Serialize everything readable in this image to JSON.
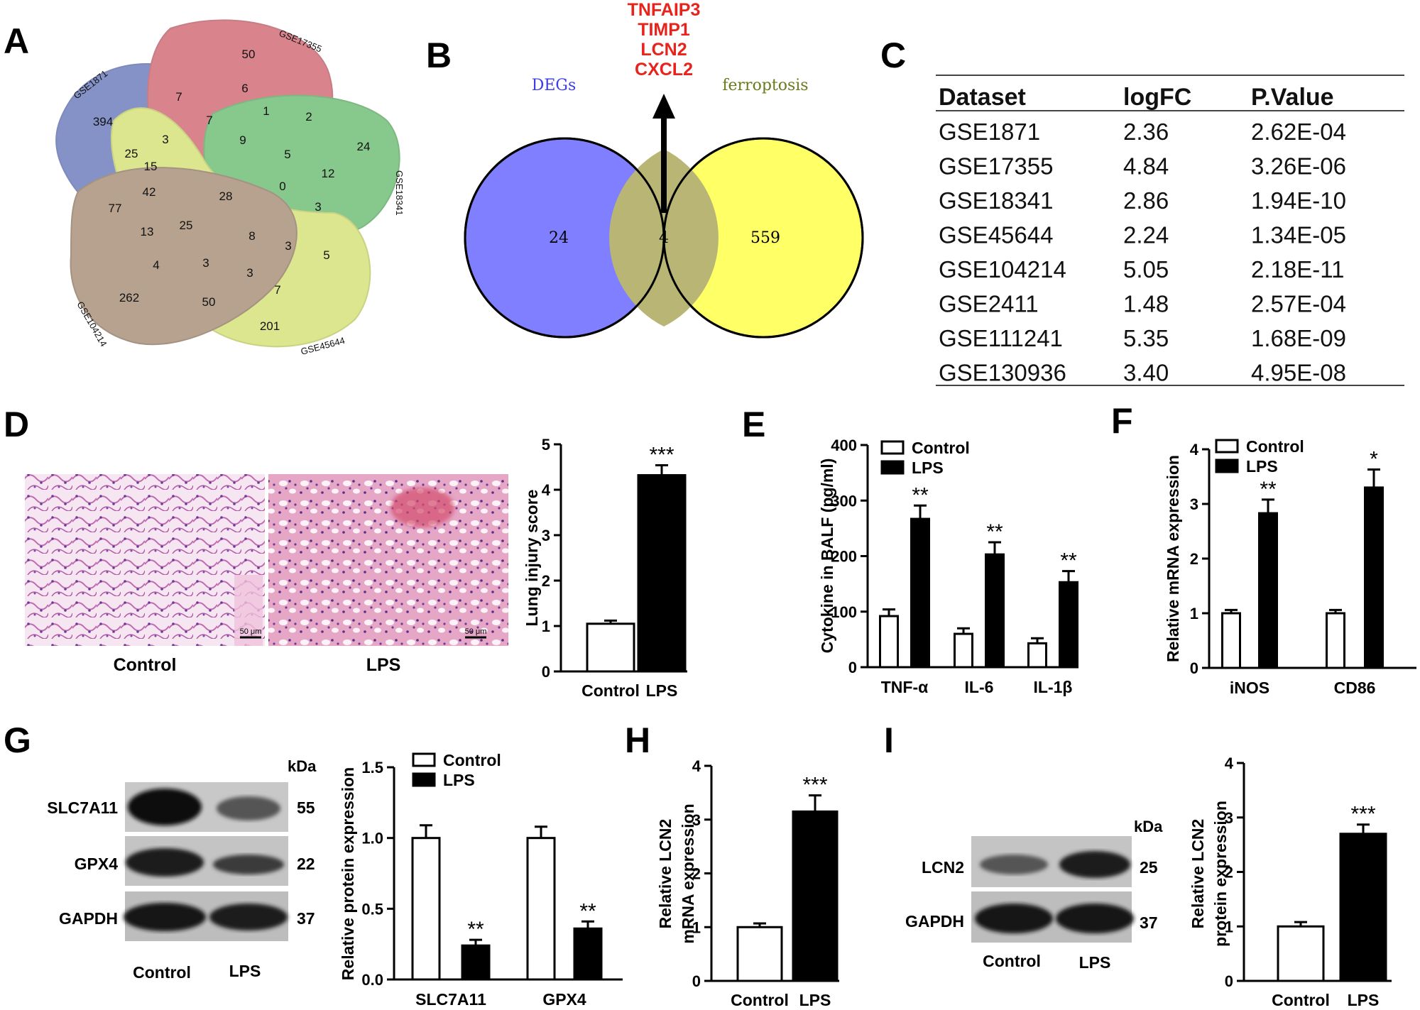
{
  "panels": {
    "A": "A",
    "B": "B",
    "C": "C",
    "D": "D",
    "E": "E",
    "F": "F",
    "G": "G",
    "H": "H",
    "I": "I"
  },
  "colors": {
    "venn_blue": "#7f7fff",
    "venn_yellow": "#ffff66",
    "venn_overlap": "#b9b675",
    "red_text": "#e8231c"
  },
  "venn5": {
    "sets": [
      "GSE1871",
      "GSE17355",
      "GSE18341",
      "GSE45644",
      "GSE104214"
    ],
    "regions": [
      "394",
      "50",
      "24",
      "201",
      "262",
      "7",
      "6",
      "1",
      "2",
      "7",
      "9",
      "5",
      "12",
      "24",
      "3",
      "25",
      "15",
      "28",
      "0",
      "3",
      "42",
      "77",
      "25",
      "8",
      "3",
      "5",
      "13",
      "4",
      "3",
      "3",
      "7",
      "50"
    ]
  },
  "venn2": {
    "left_label": "DEGs",
    "right_label": "ferroptosis",
    "left_only": "24",
    "both": "4",
    "right_only": "559",
    "genes": [
      "TNFAIP3",
      "TIMP1",
      "LCN2",
      "CXCL2"
    ]
  },
  "table": {
    "headers": [
      "Dataset",
      "logFC",
      "P.Value"
    ],
    "rows": [
      [
        "GSE1871",
        "2.36",
        "2.62E-04"
      ],
      [
        "GSE17355",
        "4.84",
        "3.26E-06"
      ],
      [
        "GSE18341",
        "2.86",
        "1.94E-10"
      ],
      [
        "GSE45644",
        "2.24",
        "1.34E-05"
      ],
      [
        "GSE104214",
        "5.05",
        "2.18E-11"
      ],
      [
        "GSE2411",
        "1.48",
        "2.57E-04"
      ],
      [
        "GSE111241",
        "5.35",
        "1.68E-09"
      ],
      [
        "GSE130936",
        "3.40",
        "4.95E-08"
      ]
    ]
  },
  "histology": {
    "labels": [
      "Control",
      "LPS"
    ],
    "scalebar": "50 μm"
  },
  "blots": {
    "G": {
      "rows": [
        "SLC7A11",
        "GPX4",
        "GAPDH"
      ],
      "kda_header": "kDa",
      "kda": [
        "55",
        "22",
        "37"
      ],
      "lanes": [
        "Control",
        "LPS"
      ]
    },
    "I": {
      "rows": [
        "LCN2",
        "GAPDH"
      ],
      "kda_header": "kDa",
      "kda": [
        "25",
        "37"
      ],
      "lanes": [
        "Control",
        "LPS"
      ]
    }
  },
  "legend": {
    "control": "Control",
    "lps": "LPS"
  },
  "chart_data": [
    {
      "panel": "D",
      "type": "bar",
      "categories": [
        "Control",
        "LPS"
      ],
      "values": [
        1.05,
        4.32
      ],
      "errors": [
        0.07,
        0.22
      ],
      "ylabel": "Lung injury score",
      "ylim": [
        0,
        5
      ],
      "yticks": [
        "0",
        "1",
        "2",
        "3",
        "4",
        "5"
      ],
      "sig": [
        "",
        "***"
      ]
    },
    {
      "panel": "E",
      "type": "bar",
      "categories": [
        "TNF-α",
        "IL-6",
        "IL-1β"
      ],
      "series": [
        {
          "name": "Control",
          "values": [
            92,
            60,
            43
          ],
          "errors": [
            12,
            10,
            9
          ]
        },
        {
          "name": "LPS",
          "values": [
            267,
            203,
            153
          ],
          "errors": [
            24,
            22,
            20
          ]
        }
      ],
      "ylabel": "Cytokine in BALF (pg/ml)",
      "ylim": [
        0,
        400
      ],
      "yticks": [
        "0",
        "100",
        "200",
        "300",
        "400"
      ],
      "sig": [
        "**",
        "**",
        "**"
      ],
      "legend": "top-left"
    },
    {
      "panel": "F",
      "type": "bar",
      "categories": [
        "iNOS",
        "CD86"
      ],
      "series": [
        {
          "name": "Control",
          "values": [
            1.0,
            1.0
          ],
          "errors": [
            0.06,
            0.06
          ]
        },
        {
          "name": "LPS",
          "values": [
            2.83,
            3.3
          ],
          "errors": [
            0.25,
            0.33
          ]
        }
      ],
      "ylabel": "Relative mRNA expression",
      "ylim": [
        0,
        4
      ],
      "yticks": [
        "0",
        "1",
        "2",
        "3",
        "4"
      ],
      "sig": [
        "**",
        "*"
      ],
      "legend": "top-left"
    },
    {
      "panel": "G",
      "type": "bar",
      "categories": [
        "SLC7A11",
        "GPX4"
      ],
      "series": [
        {
          "name": "Control",
          "values": [
            1.0,
            1.0
          ],
          "errors": [
            0.09,
            0.08
          ]
        },
        {
          "name": "LPS",
          "values": [
            0.24,
            0.36
          ],
          "errors": [
            0.04,
            0.05
          ]
        }
      ],
      "ylabel": "Relative protein expression",
      "ylim": [
        0,
        1.5
      ],
      "yticks": [
        "0.0",
        "0.5",
        "1.0",
        "1.5"
      ],
      "sig": [
        "**",
        "**"
      ],
      "legend": "top-left"
    },
    {
      "panel": "H",
      "type": "bar",
      "categories": [
        "Control",
        "LPS"
      ],
      "values": [
        1.0,
        3.15
      ],
      "errors": [
        0.07,
        0.3
      ],
      "ylabel": "Relative LCN2 mRNA expression",
      "ylabel_lines": [
        "Relative LCN2",
        "mRNA expression"
      ],
      "ylim": [
        0,
        4
      ],
      "yticks": [
        "0",
        "1",
        "2",
        "3",
        "4"
      ],
      "sig": [
        "",
        "***"
      ]
    },
    {
      "panel": "I",
      "type": "bar",
      "categories": [
        "Control",
        "LPS"
      ],
      "values": [
        1.0,
        2.7
      ],
      "errors": [
        0.08,
        0.17
      ],
      "ylabel": "Relative LCN2 protein expression",
      "ylabel_lines": [
        "Relative LCN2",
        "protein expression"
      ],
      "ylim": [
        0,
        4
      ],
      "yticks": [
        "0",
        "1",
        "2",
        "3",
        "4"
      ],
      "sig": [
        "",
        "***"
      ]
    }
  ]
}
